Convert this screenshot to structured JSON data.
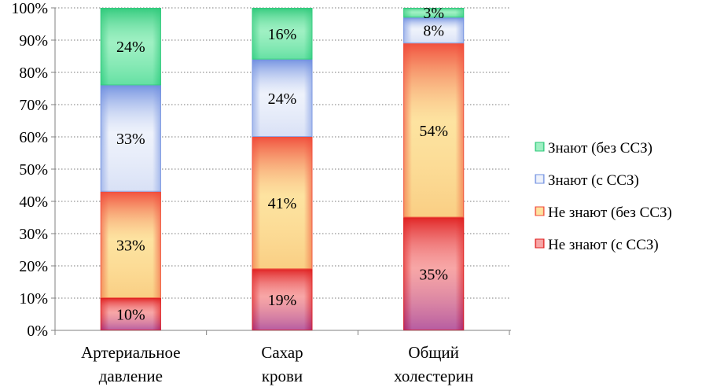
{
  "chart_data": {
    "type": "bar",
    "stacked": true,
    "categories": [
      [
        "Артериальное",
        "давление"
      ],
      [
        "Сахар",
        "крови"
      ],
      [
        "Общий",
        "холестерин"
      ]
    ],
    "series": [
      {
        "name": "Не знают (с ССЗ)",
        "values": [
          10,
          19,
          35
        ],
        "labels": [
          "10%",
          "19%",
          "35%"
        ],
        "color": "#e02020",
        "color_light": "#f7a6a6",
        "color_bottom": "#8a2a9e"
      },
      {
        "name": "Не знают (без ССЗ)",
        "values": [
          33,
          41,
          54
        ],
        "labels": [
          "33%",
          "41%",
          "54%"
        ],
        "color": "#f04a3a",
        "color_light": "#fde3a0",
        "color_bottom": "#f7c070"
      },
      {
        "name": "Знают (с ССЗ)",
        "values": [
          33,
          24,
          8
        ],
        "labels": [
          "33%",
          "24%",
          "8%"
        ],
        "color": "#6f8fe0",
        "color_light": "#eef2fb",
        "color_bottom": "#c9d4f2"
      },
      {
        "name": "Знают (без ССЗ)",
        "values": [
          24,
          16,
          3
        ],
        "labels": [
          "24%",
          "16%",
          "3%"
        ],
        "color": "#2ec97a",
        "color_light": "#9ff0c3",
        "color_bottom": "#3bd58c"
      }
    ],
    "yticks": [
      "0%",
      "10%",
      "20%",
      "30%",
      "40%",
      "50%",
      "60%",
      "70%",
      "80%",
      "90%",
      "100%"
    ],
    "ylim": [
      0,
      100
    ],
    "grid": true,
    "legend": "right",
    "xlabel": "",
    "ylabel": ""
  }
}
